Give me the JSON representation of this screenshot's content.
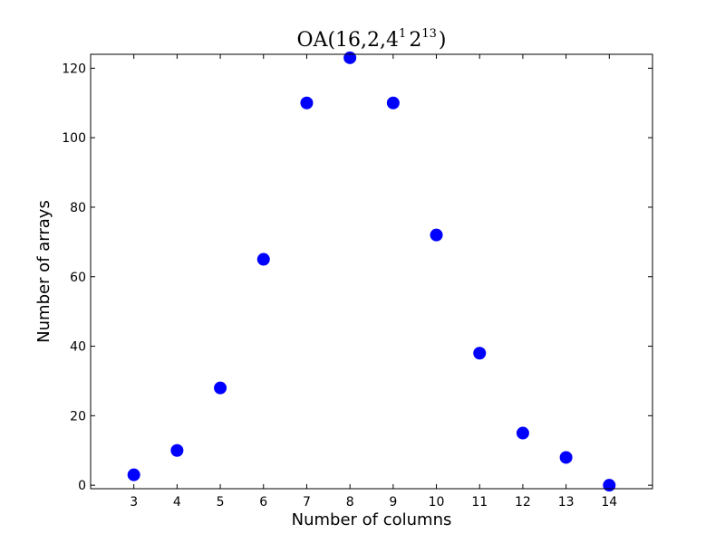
{
  "chart_data": {
    "type": "scatter",
    "title": {
      "prefix": "OA(16,2,4",
      "sup1": "1",
      "mid": "2",
      "sup2": "13",
      "suffix": ")"
    },
    "xlabel": "Number of columns",
    "ylabel": "Number of arrays",
    "xlim": [
      2,
      15
    ],
    "ylim": [
      -1,
      124
    ],
    "xticks": [
      3,
      4,
      5,
      6,
      7,
      8,
      9,
      10,
      11,
      12,
      13,
      14
    ],
    "yticks": [
      0,
      20,
      40,
      60,
      80,
      100,
      120
    ],
    "x": [
      3,
      4,
      5,
      6,
      7,
      8,
      9,
      10,
      11,
      12,
      13,
      14
    ],
    "y": [
      3,
      10,
      28,
      65,
      110,
      123,
      110,
      72,
      38,
      15,
      8,
      0
    ],
    "marker_color": "#0000ff",
    "grid": false
  }
}
